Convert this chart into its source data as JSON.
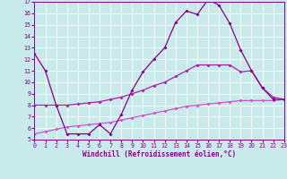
{
  "xlabel": "Windchill (Refroidissement éolien,°C)",
  "xlim": [
    0,
    23
  ],
  "ylim": [
    5,
    17
  ],
  "xticks": [
    0,
    1,
    2,
    3,
    4,
    5,
    6,
    7,
    8,
    9,
    10,
    11,
    12,
    13,
    14,
    15,
    16,
    17,
    18,
    19,
    20,
    21,
    22,
    23
  ],
  "yticks": [
    5,
    6,
    7,
    8,
    9,
    10,
    11,
    12,
    13,
    14,
    15,
    16,
    17
  ],
  "bg_color": "#c8eaea",
  "line1_color": "#880088",
  "line2_color": "#aa22aa",
  "line3_color": "#cc55cc",
  "line1_x": [
    0,
    1,
    2,
    3,
    4,
    5,
    6,
    7,
    8,
    9,
    10,
    11,
    12,
    13,
    14,
    15,
    16,
    17,
    18,
    19,
    20,
    21,
    22,
    23
  ],
  "line1_y": [
    12.5,
    11.0,
    8.0,
    5.5,
    5.5,
    5.5,
    6.3,
    5.5,
    7.2,
    9.3,
    10.9,
    12.0,
    13.0,
    15.2,
    16.2,
    15.9,
    17.2,
    16.7,
    15.1,
    12.8,
    11.0,
    9.5,
    8.5,
    8.5
  ],
  "line2_x": [
    0,
    1,
    2,
    3,
    4,
    5,
    6,
    7,
    8,
    9,
    10,
    11,
    12,
    13,
    14,
    15,
    16,
    17,
    18,
    19,
    20,
    21,
    22,
    23
  ],
  "line2_y": [
    8.0,
    8.0,
    8.0,
    8.0,
    8.1,
    8.2,
    8.3,
    8.5,
    8.7,
    9.0,
    9.3,
    9.7,
    10.0,
    10.5,
    11.0,
    11.5,
    11.5,
    11.5,
    11.5,
    10.9,
    11.0,
    9.5,
    8.7,
    8.5
  ],
  "line3_x": [
    0,
    1,
    2,
    3,
    4,
    5,
    6,
    7,
    8,
    9,
    10,
    11,
    12,
    13,
    14,
    15,
    16,
    17,
    18,
    19,
    20,
    21,
    22,
    23
  ],
  "line3_y": [
    5.5,
    5.7,
    5.9,
    6.1,
    6.2,
    6.3,
    6.4,
    6.5,
    6.7,
    6.9,
    7.1,
    7.3,
    7.5,
    7.7,
    7.9,
    8.0,
    8.1,
    8.2,
    8.3,
    8.4,
    8.4,
    8.4,
    8.4,
    8.5
  ]
}
